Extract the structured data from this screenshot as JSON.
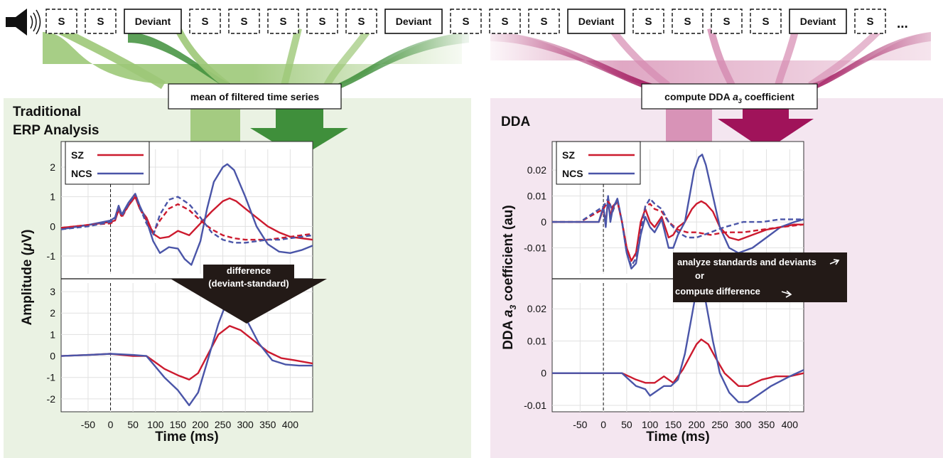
{
  "sequence": [
    "S",
    "S",
    "Deviant",
    "S",
    "S",
    "S",
    "S",
    "S",
    "Deviant",
    "S",
    "S",
    "S",
    "Deviant",
    "S",
    "S",
    "S",
    "S",
    "Deviant",
    "S"
  ],
  "sequence_ellipsis": "...",
  "left_box_label": "mean of filtered time series",
  "right_box_label_parts": [
    "compute DDA ",
    "a",
    "3",
    " coefficient"
  ],
  "left_title_line1": "Traditional",
  "left_title_line2": "ERP Analysis",
  "right_title": "DDA",
  "diff_label_line1": "difference",
  "diff_label_line2": "(deviant-standard)",
  "analyze_line1": "analyze standards and deviants",
  "analyze_line2": "or",
  "analyze_line3": "compute difference",
  "legend": [
    {
      "name": "SZ",
      "color": "#cc1a2e"
    },
    {
      "name": "NCS",
      "color": "#4a55a8"
    }
  ],
  "colors": {
    "light_green": "#9dc878",
    "dark_green": "#3f8f3b",
    "light_pink": "#d58ab0",
    "dark_magenta": "#a0135a",
    "left_bg": "#eaf2e3",
    "right_bg": "#f4e6f0"
  },
  "chart_data": [
    {
      "type": "line",
      "title": "Traditional ERP Analysis",
      "xlabel": "Time (ms)",
      "ylabel_parts": [
        "Amplitude (",
        "μ",
        "V)"
      ],
      "xlim": [
        -110,
        450
      ],
      "xticks": [
        -50,
        0,
        50,
        100,
        150,
        200,
        250,
        300,
        350,
        400
      ],
      "top_panel": {
        "ylim": [
          -1.6,
          2.6
        ],
        "yticks": [
          -1,
          0,
          1,
          2
        ],
        "series": [
          {
            "name": "SZ",
            "group": "deviant",
            "x": [
              -110,
              -50,
              0,
              10,
              18,
              25,
              40,
              55,
              65,
              80,
              95,
              110,
              130,
              150,
              175,
              200,
              225,
              250,
              265,
              280,
              300,
              325,
              350,
              375,
              400,
              425,
              450
            ],
            "y": [
              -0.05,
              0.05,
              0.15,
              0.2,
              0.55,
              0.35,
              0.7,
              1.0,
              0.6,
              0.3,
              -0.25,
              -0.4,
              -0.35,
              -0.15,
              -0.3,
              0.1,
              0.5,
              0.85,
              0.95,
              0.85,
              0.6,
              0.3,
              0.0,
              -0.2,
              -0.35,
              -0.4,
              -0.45
            ]
          },
          {
            "name": "NCS",
            "group": "deviant",
            "x": [
              -110,
              -50,
              0,
              10,
              18,
              25,
              40,
              55,
              65,
              80,
              95,
              110,
              130,
              150,
              165,
              180,
              200,
              215,
              230,
              250,
              260,
              275,
              300,
              325,
              350,
              375,
              400,
              425,
              450
            ],
            "y": [
              -0.1,
              0.05,
              0.2,
              0.3,
              0.7,
              0.4,
              0.8,
              1.1,
              0.7,
              0.2,
              -0.5,
              -0.9,
              -0.7,
              -0.75,
              -1.1,
              -1.3,
              -0.5,
              0.6,
              1.5,
              2.0,
              2.1,
              1.9,
              1.0,
              0.0,
              -0.6,
              -0.85,
              -0.9,
              -0.8,
              -0.65
            ]
          },
          {
            "name": "SZ",
            "group": "standard",
            "x": [
              -110,
              -50,
              0,
              10,
              18,
              25,
              40,
              55,
              65,
              80,
              95,
              110,
              130,
              150,
              175,
              200,
              225,
              250,
              275,
              300,
              325,
              350,
              375,
              400,
              425,
              450
            ],
            "y": [
              -0.05,
              0.05,
              0.1,
              0.2,
              0.6,
              0.3,
              0.7,
              1.05,
              0.6,
              0.2,
              -0.2,
              0.2,
              0.6,
              0.75,
              0.55,
              0.2,
              -0.1,
              -0.3,
              -0.4,
              -0.45,
              -0.45,
              -0.45,
              -0.4,
              -0.35,
              -0.3,
              -0.25
            ]
          },
          {
            "name": "NCS",
            "group": "standard",
            "x": [
              -110,
              -50,
              0,
              10,
              18,
              25,
              40,
              55,
              65,
              80,
              95,
              110,
              130,
              150,
              175,
              200,
              225,
              250,
              275,
              300,
              325,
              350,
              375,
              400,
              425,
              450
            ],
            "y": [
              -0.1,
              0.0,
              0.15,
              0.25,
              0.65,
              0.35,
              0.75,
              1.1,
              0.65,
              0.1,
              -0.3,
              0.4,
              0.9,
              1.0,
              0.75,
              0.3,
              -0.2,
              -0.45,
              -0.55,
              -0.55,
              -0.5,
              -0.45,
              -0.45,
              -0.4,
              -0.35,
              -0.3
            ]
          }
        ]
      },
      "bottom_panel": {
        "ylim": [
          -2.6,
          3.4
        ],
        "yticks": [
          -2,
          -1,
          0,
          1,
          2,
          3
        ],
        "series": [
          {
            "name": "SZ",
            "x": [
              -110,
              -50,
              0,
              50,
              80,
              100,
              120,
              150,
              175,
              195,
              215,
              240,
              265,
              290,
              320,
              350,
              380,
              410,
              450
            ],
            "y": [
              0.0,
              0.05,
              0.1,
              0.0,
              0.0,
              -0.3,
              -0.6,
              -0.9,
              -1.1,
              -0.8,
              0.0,
              1.0,
              1.4,
              1.2,
              0.7,
              0.2,
              -0.1,
              -0.2,
              -0.35
            ]
          },
          {
            "name": "NCS",
            "x": [
              -110,
              -50,
              0,
              50,
              80,
              100,
              120,
              150,
              175,
              195,
              215,
              240,
              260,
              280,
              300,
              330,
              360,
              390,
              420,
              450
            ],
            "y": [
              0.0,
              0.05,
              0.1,
              0.05,
              0.0,
              -0.5,
              -1.0,
              -1.6,
              -2.3,
              -1.7,
              -0.3,
              1.5,
              2.6,
              2.5,
              1.8,
              0.6,
              -0.2,
              -0.4,
              -0.45,
              -0.45
            ]
          }
        ]
      }
    },
    {
      "type": "line",
      "title": "DDA",
      "xlabel": "Time (ms)",
      "ylabel_parts": [
        "DDA ",
        "a",
        "3",
        " coefficient (au)"
      ],
      "xlim": [
        -110,
        430
      ],
      "xticks": [
        -50,
        0,
        50,
        100,
        150,
        200,
        250,
        300,
        350,
        400
      ],
      "top_panel": {
        "ylim": [
          -0.02,
          0.028
        ],
        "yticks": [
          -0.01,
          0,
          0.01,
          0.02
        ],
        "ytick_labels": [
          "-0.01",
          "0",
          "0.01",
          "0.02"
        ],
        "series": [
          {
            "name": "SZ",
            "group": "deviant",
            "x": [
              -110,
              -50,
              -10,
              0,
              5,
              10,
              15,
              20,
              30,
              40,
              50,
              60,
              70,
              80,
              90,
              100,
              110,
              125,
              140,
              150,
              160,
              175,
              190,
              200,
              210,
              220,
              235,
              250,
              270,
              290,
              320,
              350,
              380,
              410,
              430
            ],
            "y": [
              0.0,
              0.0,
              0.0,
              0.005,
              0.0,
              0.008,
              0.002,
              0.006,
              0.008,
              0.0,
              -0.01,
              -0.015,
              -0.012,
              0.0,
              0.005,
              0.0,
              -0.002,
              0.002,
              -0.006,
              -0.005,
              -0.002,
              0.0,
              0.005,
              0.007,
              0.008,
              0.007,
              0.004,
              -0.002,
              -0.006,
              -0.007,
              -0.005,
              -0.003,
              -0.002,
              -0.001,
              -0.001
            ]
          },
          {
            "name": "NCS",
            "group": "deviant",
            "x": [
              -110,
              -50,
              -10,
              0,
              5,
              10,
              15,
              20,
              30,
              40,
              50,
              60,
              70,
              80,
              90,
              100,
              110,
              125,
              140,
              150,
              160,
              175,
              185,
              195,
              205,
              212,
              220,
              235,
              250,
              270,
              290,
              320,
              350,
              380,
              410,
              430
            ],
            "y": [
              0.0,
              0.0,
              0.0,
              0.006,
              -0.002,
              0.01,
              0.0,
              0.005,
              0.009,
              0.0,
              -0.012,
              -0.018,
              -0.016,
              -0.005,
              0.002,
              -0.002,
              -0.004,
              0.001,
              -0.01,
              -0.01,
              -0.005,
              0.0,
              0.01,
              0.02,
              0.025,
              0.026,
              0.022,
              0.01,
              -0.002,
              -0.01,
              -0.012,
              -0.01,
              -0.006,
              -0.002,
              0.0,
              0.001
            ]
          },
          {
            "name": "SZ",
            "group": "standard",
            "x": [
              -110,
              -50,
              0,
              10,
              20,
              30,
              40,
              50,
              60,
              70,
              80,
              90,
              100,
              110,
              125,
              140,
              160,
              180,
              200,
              230,
              260,
              300,
              340,
              380,
              430
            ],
            "y": [
              0.0,
              0.0,
              0.005,
              0.008,
              0.005,
              0.008,
              0.0,
              -0.01,
              -0.015,
              -0.012,
              -0.002,
              0.006,
              0.007,
              0.005,
              0.004,
              0.0,
              -0.003,
              -0.004,
              -0.004,
              -0.005,
              -0.004,
              -0.004,
              -0.003,
              -0.002,
              -0.001
            ]
          },
          {
            "name": "NCS",
            "group": "standard",
            "x": [
              -110,
              -50,
              0,
              10,
              20,
              30,
              40,
              50,
              60,
              70,
              80,
              90,
              100,
              110,
              125,
              140,
              160,
              180,
              200,
              230,
              260,
              300,
              340,
              380,
              430
            ],
            "y": [
              0.0,
              0.0,
              0.006,
              0.009,
              0.004,
              0.009,
              0.0,
              -0.012,
              -0.017,
              -0.014,
              -0.004,
              0.006,
              0.009,
              0.007,
              0.005,
              0.0,
              -0.004,
              -0.006,
              -0.006,
              -0.004,
              -0.002,
              0.0,
              0.0,
              0.001,
              0.001
            ]
          }
        ]
      },
      "bottom_panel": {
        "ylim": [
          -0.012,
          0.028
        ],
        "yticks": [
          -0.01,
          0,
          0.01,
          0.02
        ],
        "ytick_labels": [
          "-0.01",
          "0",
          "0.01",
          "0.02"
        ],
        "series": [
          {
            "name": "SZ",
            "x": [
              -110,
              -50,
              0,
              40,
              70,
              90,
              110,
              130,
              150,
              170,
              185,
              200,
              210,
              225,
              240,
              260,
              290,
              310,
              340,
              370,
              400,
              430
            ],
            "y": [
              0.0,
              0.0,
              0.0,
              0.0,
              -0.002,
              -0.003,
              -0.003,
              -0.001,
              -0.003,
              0.001,
              0.005,
              0.009,
              0.0105,
              0.009,
              0.005,
              0.0,
              -0.004,
              -0.004,
              -0.002,
              -0.001,
              -0.001,
              0.0
            ]
          },
          {
            "name": "NCS",
            "x": [
              -110,
              -50,
              0,
              40,
              70,
              90,
              100,
              110,
              130,
              145,
              160,
              175,
              190,
              200,
              210,
              220,
              235,
              250,
              270,
              290,
              310,
              330,
              360,
              400,
              430
            ],
            "y": [
              0.0,
              0.0,
              0.0,
              0.0,
              -0.004,
              -0.005,
              -0.007,
              -0.006,
              -0.004,
              -0.004,
              -0.002,
              0.006,
              0.018,
              0.026,
              0.027,
              0.022,
              0.01,
              0.0,
              -0.006,
              -0.009,
              -0.009,
              -0.007,
              -0.004,
              -0.001,
              0.001
            ]
          }
        ]
      }
    }
  ]
}
